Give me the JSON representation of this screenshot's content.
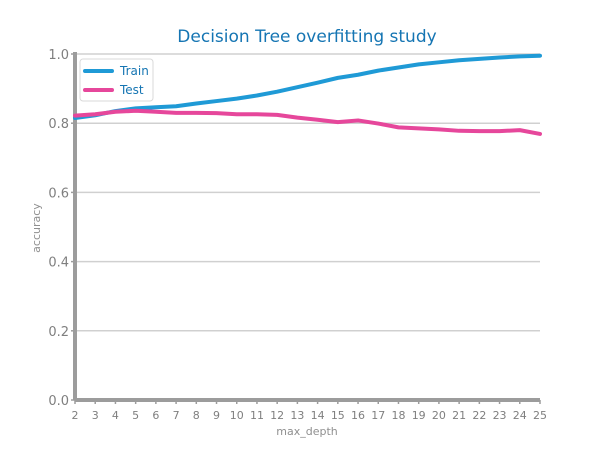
{
  "chart_data": {
    "type": "line",
    "title": "Decision Tree overfitting study",
    "xlabel": "max_depth",
    "ylabel": "accuracy",
    "x": [
      2,
      3,
      4,
      5,
      6,
      7,
      8,
      9,
      10,
      11,
      12,
      13,
      14,
      15,
      16,
      17,
      18,
      19,
      20,
      21,
      22,
      23,
      24,
      25
    ],
    "xticks": [
      "2",
      "3",
      "4",
      "5",
      "6",
      "7",
      "8",
      "9",
      "10",
      "11",
      "12",
      "13",
      "14",
      "15",
      "16",
      "17",
      "18",
      "19",
      "20",
      "21",
      "22",
      "23",
      "24",
      "25"
    ],
    "xlim": [
      2,
      25
    ],
    "ylim": [
      0.0,
      1.0
    ],
    "yticks": [
      "0.0",
      "0.2",
      "0.4",
      "0.6",
      "0.8",
      "1.0"
    ],
    "grid": true,
    "legend": "upper-left",
    "series": [
      {
        "name": "Train",
        "color": "#1f9ad6",
        "values": [
          0.815,
          0.823,
          0.835,
          0.843,
          0.846,
          0.849,
          0.857,
          0.864,
          0.871,
          0.88,
          0.891,
          0.904,
          0.917,
          0.931,
          0.94,
          0.952,
          0.961,
          0.97,
          0.976,
          0.982,
          0.986,
          0.99,
          0.993,
          0.995
        ]
      },
      {
        "name": "Test",
        "color": "#e6479b",
        "values": [
          0.822,
          0.826,
          0.833,
          0.836,
          0.833,
          0.83,
          0.83,
          0.829,
          0.826,
          0.826,
          0.824,
          0.816,
          0.81,
          0.803,
          0.808,
          0.799,
          0.788,
          0.785,
          0.782,
          0.778,
          0.777,
          0.777,
          0.78,
          0.769
        ]
      }
    ]
  },
  "colors": {
    "title": "#1575b3",
    "axis": "#9c9c9c",
    "grid": "#d0d0d0",
    "legend_text": "#1575b3",
    "legend_border": "#d9d9d9"
  }
}
